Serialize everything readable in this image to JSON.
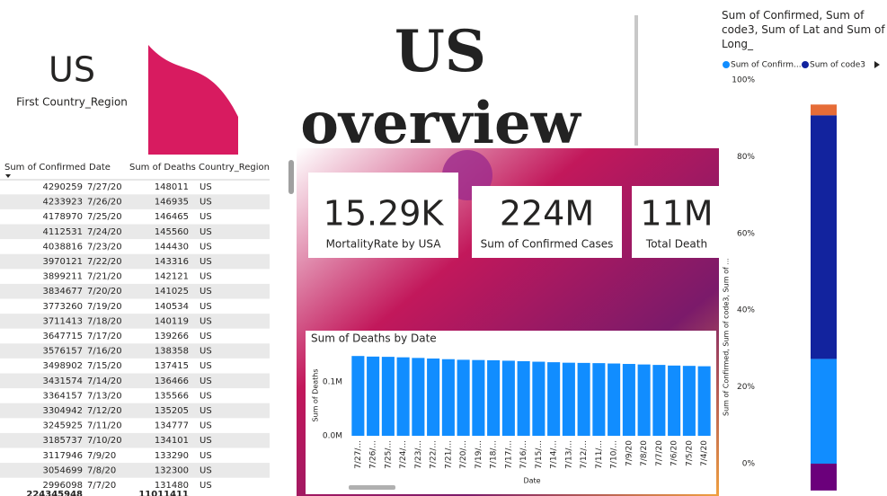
{
  "left_card": {
    "value": "US",
    "label": "First Country_Region"
  },
  "title": "US overview",
  "table": {
    "columns": [
      "Sum of Confirmed",
      "Date",
      "Sum of Deaths",
      "Country_Region"
    ],
    "rows": [
      [
        4290259,
        "7/27/20",
        148011,
        "US"
      ],
      [
        4233923,
        "7/26/20",
        146935,
        "US"
      ],
      [
        4178970,
        "7/25/20",
        146465,
        "US"
      ],
      [
        4112531,
        "7/24/20",
        145560,
        "US"
      ],
      [
        4038816,
        "7/23/20",
        144430,
        "US"
      ],
      [
        3970121,
        "7/22/20",
        143316,
        "US"
      ],
      [
        3899211,
        "7/21/20",
        142121,
        "US"
      ],
      [
        3834677,
        "7/20/20",
        141025,
        "US"
      ],
      [
        3773260,
        "7/19/20",
        140534,
        "US"
      ],
      [
        3711413,
        "7/18/20",
        140119,
        "US"
      ],
      [
        3647715,
        "7/17/20",
        139266,
        "US"
      ],
      [
        3576157,
        "7/16/20",
        138358,
        "US"
      ],
      [
        3498902,
        "7/15/20",
        137415,
        "US"
      ],
      [
        3431574,
        "7/14/20",
        136466,
        "US"
      ],
      [
        3364157,
        "7/13/20",
        135566,
        "US"
      ],
      [
        3304942,
        "7/12/20",
        135205,
        "US"
      ],
      [
        3245925,
        "7/11/20",
        134777,
        "US"
      ],
      [
        3185737,
        "7/10/20",
        134101,
        "US"
      ],
      [
        3117946,
        "7/9/20",
        133290,
        "US"
      ],
      [
        3054699,
        "7/8/20",
        132300,
        "US"
      ],
      [
        2996098,
        "7/7/20",
        131480,
        "US"
      ]
    ],
    "totals": [
      224345948,
      11011411
    ]
  },
  "cards": [
    {
      "value": "15.29K",
      "label": "MortalityRate by USA"
    },
    {
      "value": "224M",
      "label": "Sum of Confirmed Cases"
    },
    {
      "value": "11M",
      "label": "Total Death"
    }
  ],
  "deaths_chart": {
    "type": "bar",
    "title": "Sum of Deaths by Date",
    "x_label": "Date",
    "y_label": "Sum of Deaths",
    "categories": [
      "7/27/...",
      "7/26/...",
      "7/25/...",
      "7/24/...",
      "7/23/...",
      "7/22/...",
      "7/21/...",
      "7/20/...",
      "7/19/...",
      "7/18/...",
      "7/17/...",
      "7/16/...",
      "7/15/...",
      "7/14/...",
      "7/13/...",
      "7/12/...",
      "7/11/...",
      "7/10/...",
      "7/9/20",
      "7/8/20",
      "7/7/20",
      "7/6/20",
      "7/5/20",
      "7/4/20"
    ],
    "values": [
      148011,
      146935,
      146465,
      145560,
      144430,
      143316,
      142121,
      141025,
      140534,
      140119,
      139266,
      138358,
      137415,
      136466,
      135566,
      135205,
      134777,
      134101,
      133290,
      132300,
      131480,
      130300,
      129700,
      129000
    ],
    "color": "#118dff",
    "ylim": [
      0,
      160000
    ],
    "yticks": [
      {
        "value": 0,
        "label": "0.0M"
      },
      {
        "value": 100000,
        "label": "0.1M"
      }
    ]
  },
  "composition_chart": {
    "type": "stacked_bar",
    "title": "Sum of Confirmed, Sum of code3, Sum of Lat and Sum of Long_",
    "y_label": "Sum of Confirmed, Sum of code3, Sum of ...",
    "series": [
      {
        "name": "Sum of Confirm...",
        "color": "#118dff",
        "values": [
          27.3
        ]
      },
      {
        "name": "Sum of code3",
        "color": "#12239e",
        "values": [
          63.5
        ]
      },
      {
        "color": "#e66c37",
        "values": [
          2.8
        ]
      },
      {
        "color": "#6b007b",
        "values": [
          -7
        ]
      }
    ],
    "ylim": [
      -7,
      100
    ],
    "yticks": [
      {
        "value": 0,
        "label": "0%"
      },
      {
        "value": 20,
        "label": "20%"
      },
      {
        "value": 40,
        "label": "40%"
      },
      {
        "value": 60,
        "label": "60%"
      },
      {
        "value": 80,
        "label": "80%"
      },
      {
        "value": 100,
        "label": "100%"
      }
    ]
  }
}
